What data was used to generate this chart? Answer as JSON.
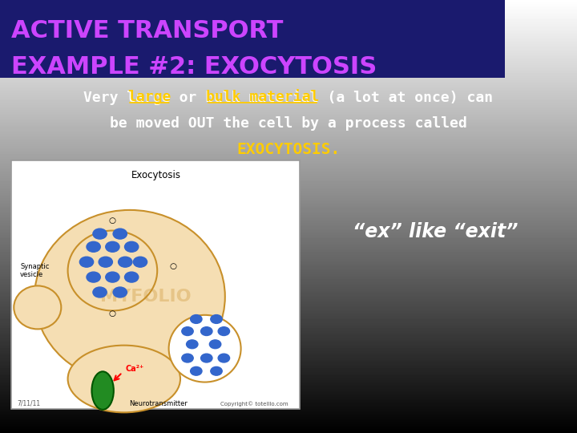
{
  "title_line1": "ACTIVE TRANSPORT",
  "title_line2": "EXAMPLE #2: EXOCYTOSIS",
  "title_bg_color": "#1a1a6e",
  "title_text_color": "#cc44ff",
  "body_text_line1": "Very large or bulk material (a lot at once) can",
  "body_text_line2": "be moved OUT the cell by a process called",
  "body_text_line3": "EXOCYTOSIS.",
  "body_line2_color": "#ffffff",
  "body_line3_color": "#ffcc00",
  "note_text": "“ex” like “exit”",
  "note_color": "#ffffff",
  "diagram_title": "Exocytosis",
  "bg_gray": "#888888"
}
